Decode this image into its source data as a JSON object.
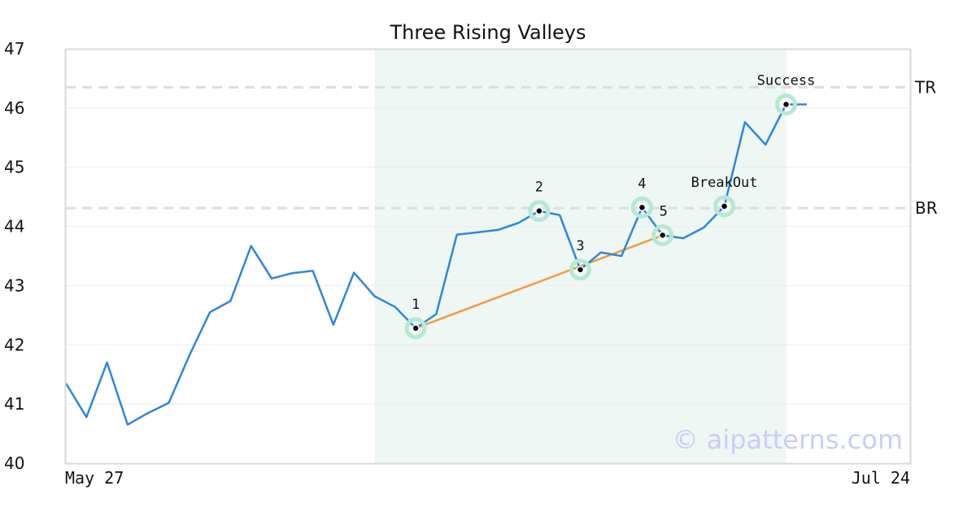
{
  "chart_data": {
    "type": "line",
    "title": "Three Rising Valleys",
    "xlabel": "",
    "ylabel": "",
    "ylim": [
      40,
      47
    ],
    "yticks": [
      40,
      41,
      42,
      43,
      44,
      45,
      46,
      47
    ],
    "x_tick_labels": [
      "May 27",
      "Jul 24"
    ],
    "grid": "horizontal",
    "colors": {
      "price": "#2e86de",
      "trendline": "#f39c3c",
      "pattern_band": "#eef7f3",
      "marker_halo": "#b8e8d4",
      "reference": "#dddddd"
    },
    "series": [
      {
        "values": [
          41.35,
          40.78,
          41.7,
          40.65,
          40.85,
          41.02,
          41.82,
          42.55,
          42.74,
          43.67,
          43.12,
          43.21,
          43.25,
          42.34,
          43.22,
          42.82,
          42.64,
          42.28,
          42.52,
          43.86,
          43.9,
          43.94,
          44.06,
          44.26,
          44.19,
          43.27,
          43.56,
          43.5,
          44.32,
          43.85,
          43.8,
          43.98,
          44.34,
          45.76,
          45.38,
          46.06,
          46.06
        ]
      }
    ],
    "pattern_region": {
      "start_index": 15,
      "end_index": 35
    },
    "reference_lines": [
      {
        "label": "TR",
        "value": 46.35
      },
      {
        "label": "BR",
        "value": 44.31
      }
    ],
    "trendline": {
      "from_index": 17,
      "to_index": 29
    },
    "points": [
      {
        "label": "1",
        "index": 17,
        "value": 42.28
      },
      {
        "label": "2",
        "index": 23,
        "value": 44.26
      },
      {
        "label": "3",
        "index": 25,
        "value": 43.27
      },
      {
        "label": "4",
        "index": 28,
        "value": 44.32
      },
      {
        "label": "5",
        "index": 29,
        "value": 43.85
      },
      {
        "label": "BreakOut",
        "index": 32,
        "value": 44.34
      },
      {
        "label": "Success",
        "index": 35,
        "value": 46.06
      }
    ]
  },
  "watermark": "© aipatterns.com"
}
